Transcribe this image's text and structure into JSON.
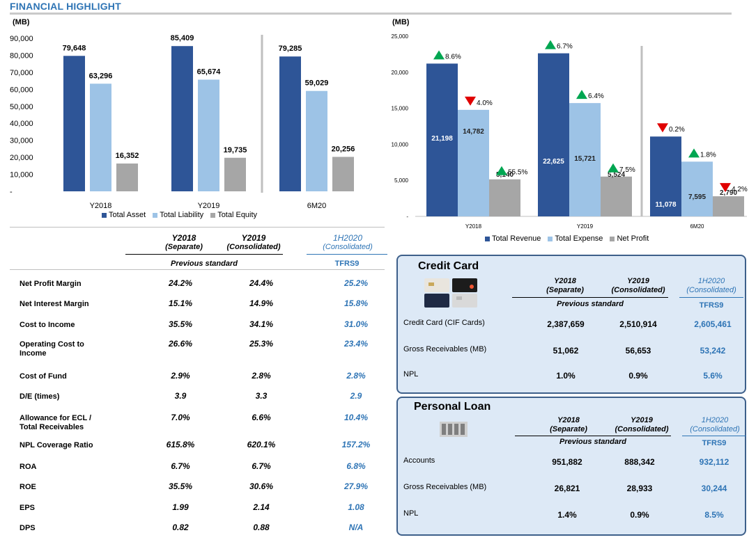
{
  "page": {
    "title": "FINANCIAL HIGHLIGHT"
  },
  "colors": {
    "dark_blue": "#2e5597",
    "light_blue": "#9dc3e6",
    "gray": "#a6a6a6",
    "accent_blue": "#2e74b5",
    "up": "#00a651",
    "down": "#e00000"
  },
  "chart_data": [
    {
      "type": "bar",
      "unit_label": "(MB)",
      "categories": [
        "Y2018",
        "Y2019",
        "6M20"
      ],
      "series": [
        {
          "name": "Total Asset",
          "values": [
            79648,
            85409,
            79285
          ]
        },
        {
          "name": "Total Liability",
          "values": [
            63296,
            65674,
            59029
          ]
        },
        {
          "name": "Total Equity",
          "values": [
            16352,
            19735,
            20256
          ]
        }
      ],
      "data_labels": [
        [
          "79,648",
          "85,409",
          "79,285"
        ],
        [
          "63,296",
          "65,674",
          "59,029"
        ],
        [
          "16,352",
          "19,735",
          "20,256"
        ]
      ],
      "yticks": [
        "90,000",
        "80,000",
        "70,000",
        "60,000",
        "50,000",
        "40,000",
        "30,000",
        "20,000",
        "10,000",
        "-"
      ],
      "ylim": [
        0,
        90000
      ],
      "legend": "bottom"
    },
    {
      "type": "bar",
      "unit_label": "(MB)",
      "categories": [
        "Y2018",
        "Y2019",
        "6M20"
      ],
      "series": [
        {
          "name": "Total Revenue",
          "values": [
            21198,
            22625,
            11078
          ]
        },
        {
          "name": "Total Expense",
          "values": [
            14782,
            15721,
            7595
          ]
        },
        {
          "name": "Net Profit",
          "values": [
            5140,
            5524,
            2790
          ]
        }
      ],
      "data_labels": [
        [
          "21,198",
          "22,625",
          "11,078"
        ],
        [
          "14,782",
          "15,721",
          "7,595"
        ],
        [
          "5,140",
          "5,524",
          "2,790"
        ]
      ],
      "change_labels": [
        [
          "8.6%",
          "6.7%",
          "0.2%"
        ],
        [
          "4.0%",
          "6.4%",
          "1.8%"
        ],
        [
          "55.5%",
          "7.5%",
          "4.2%"
        ]
      ],
      "change_direction": [
        [
          "up",
          "up",
          "down"
        ],
        [
          "down",
          "up",
          "up"
        ],
        [
          "up",
          "up",
          "down"
        ]
      ],
      "yticks": [
        "25,000",
        "20,000",
        "15,000",
        "10,000",
        "5,000",
        "-"
      ],
      "ylim": [
        0,
        25000
      ],
      "legend": "bottom"
    }
  ],
  "ratios": {
    "headers": {
      "y2018": "Y2018",
      "y2018_sub": "(Separate)",
      "y2019": "Y2019",
      "y2019_sub": "(Consolidated)",
      "h2020": "1H2020",
      "h2020_sub": "(Consolidated)",
      "prev_standard": "Previous standard",
      "tfrs9": "TFRS9"
    },
    "rows": [
      {
        "label": "Net  Profit Margin",
        "y2018": "24.2%",
        "y2019": "24.4%",
        "h2020": "25.2%"
      },
      {
        "label": "Net Interest Margin",
        "y2018": "15.1%",
        "y2019": "14.9%",
        "h2020": "15.8%"
      },
      {
        "label": "Cost  to Income",
        "y2018": "35.5%",
        "y2019": "34.1%",
        "h2020": "31.0%"
      },
      {
        "label": "Operating Cost to",
        "label2": "Income",
        "y2018": "26.6%",
        "y2019": "25.3%",
        "h2020": "23.4%"
      },
      {
        "label": "Cost  of Fund",
        "y2018": "2.9%",
        "y2019": "2.8%",
        "h2020": "2.8%"
      },
      {
        "label": "D/E (times)",
        "y2018": "3.9",
        "y2019": "3.3",
        "h2020": "2.9"
      },
      {
        "label": "Allowance for ECL /",
        "label2": "Total Receivables",
        "y2018": "7.0%",
        "y2019": "6.6%",
        "h2020": "10.4%"
      },
      {
        "label": "NPL Coverage Ratio",
        "y2018": "615.8%",
        "y2019": "620.1%",
        "h2020": "157.2%"
      },
      {
        "label": "ROA",
        "y2018": "6.7%",
        "y2019": "6.7%",
        "h2020": "6.8%"
      },
      {
        "label": "ROE",
        "y2018": "35.5%",
        "y2019": "30.6%",
        "h2020": "27.9%"
      },
      {
        "label": "EPS",
        "y2018": "1.99",
        "y2019": "2.14",
        "h2020": "1.08"
      },
      {
        "label": "DPS",
        "y2018": "0.82",
        "y2019": "0.88",
        "h2020": "N/A"
      }
    ]
  },
  "credit_card": {
    "title": "Credit Card",
    "headers": {
      "y2018": "Y2018",
      "y2018_sub": "(Separate)",
      "y2019": "Y2019",
      "y2019_sub": "(Consolidated)",
      "h2020": "1H2020",
      "h2020_sub": "(Consolidated)",
      "prev_standard": "Previous standard",
      "tfrs9": "TFRS9"
    },
    "rows": [
      {
        "label": "Credit Card (CIF Cards)",
        "y2018": "2,387,659",
        "y2019": "2,510,914",
        "h2020": "2,605,461"
      },
      {
        "label": "Gross Receivables (MB)",
        "y2018": "51,062",
        "y2019": "56,653",
        "h2020": "53,242"
      },
      {
        "label": "NPL",
        "y2018": "1.0%",
        "y2019": "0.9%",
        "h2020": "5.6%"
      }
    ]
  },
  "personal_loan": {
    "title": "Personal Loan",
    "headers": {
      "y2018": "Y2018",
      "y2018_sub": "(Separate)",
      "y2019": "Y2019",
      "y2019_sub": "(Consolidated)",
      "h2020": "1H2020",
      "h2020_sub": "(Consolidated)",
      "prev_standard": "Previous standard",
      "tfrs9": "TFRS9"
    },
    "rows": [
      {
        "label": "Accounts",
        "y2018": "951,882",
        "y2019": "888,342",
        "h2020": "932,112"
      },
      {
        "label": "Gross Receivables (MB)",
        "y2018": "26,821",
        "y2019": "28,933",
        "h2020": "30,244"
      },
      {
        "label": "NPL",
        "y2018": "1.4%",
        "y2019": "0.9%",
        "h2020": "8.5%"
      }
    ]
  }
}
